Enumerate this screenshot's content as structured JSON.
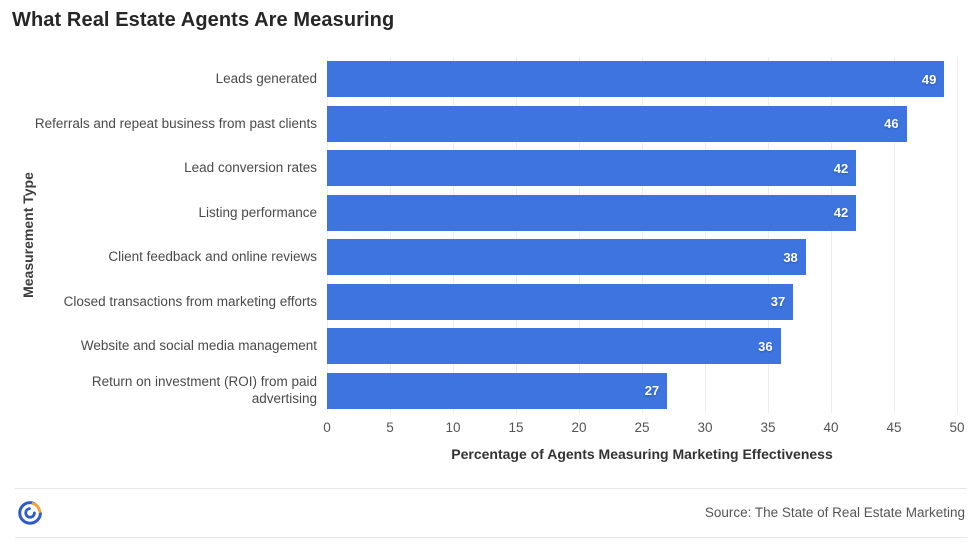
{
  "title": "What Real Estate Agents Are Measuring",
  "chart_data": {
    "type": "bar",
    "orientation": "horizontal",
    "title": "What Real Estate Agents Are Measuring",
    "categories": [
      "Leads generated",
      "Referrals and repeat business from past clients",
      "Lead conversion rates",
      "Listing performance",
      "Client feedback and online reviews",
      "Closed transactions from marketing efforts",
      "Website and social media management",
      "Return on investment (ROI) from paid advertising"
    ],
    "values": [
      49,
      46,
      42,
      42,
      38,
      37,
      36,
      27
    ],
    "xlabel": "Percentage of Agents Measuring Marketing Effectiveness",
    "ylabel": "Measurement Type",
    "xlim": [
      0,
      50
    ],
    "xticks": [
      0,
      5,
      10,
      15,
      20,
      25,
      30,
      35,
      40,
      45,
      50
    ],
    "grid": true,
    "legend": false,
    "bar_color": "#3D74E0",
    "value_label_color": "#ffffff"
  },
  "footer": {
    "source": "Source: The State of Real Estate Marketing",
    "logo_icon": "brand-circle-logo",
    "logo_colors": {
      "blue": "#2F5BC7",
      "orange": "#F0A23C"
    }
  }
}
